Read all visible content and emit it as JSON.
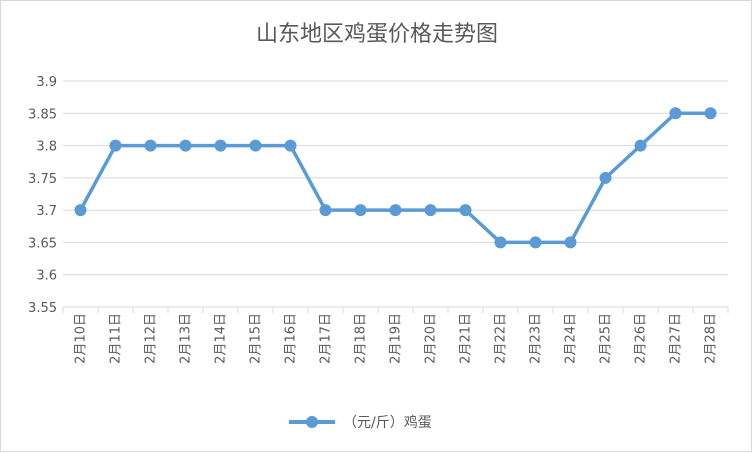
{
  "chart_data": {
    "type": "line",
    "title": "山东地区鸡蛋价格走势图",
    "xlabel": "",
    "ylabel": "",
    "categories": [
      "2月10日",
      "2月11日",
      "2月12日",
      "2月13日",
      "2月14日",
      "2月15日",
      "2月16日",
      "2月17日",
      "2月18日",
      "2月19日",
      "2月20日",
      "2月21日",
      "2月22日",
      "2月23日",
      "2月24日",
      "2月25日",
      "2月26日",
      "2月27日",
      "2月28日"
    ],
    "series": [
      {
        "name": "（元/斤）鸡蛋",
        "values": [
          3.7,
          3.8,
          3.8,
          3.8,
          3.8,
          3.8,
          3.8,
          3.7,
          3.7,
          3.7,
          3.7,
          3.7,
          3.65,
          3.65,
          3.65,
          3.75,
          3.8,
          3.85,
          3.85
        ]
      }
    ],
    "ylim": [
      3.55,
      3.9
    ],
    "yticks": [
      "3.55",
      "3.6",
      "3.65",
      "3.7",
      "3.75",
      "3.8",
      "3.85",
      "3.9"
    ],
    "grid": true,
    "legend": "bottom",
    "colors": {
      "series": "#5b9bd5",
      "grid": "#d9d9d9",
      "text": "#595959"
    }
  }
}
